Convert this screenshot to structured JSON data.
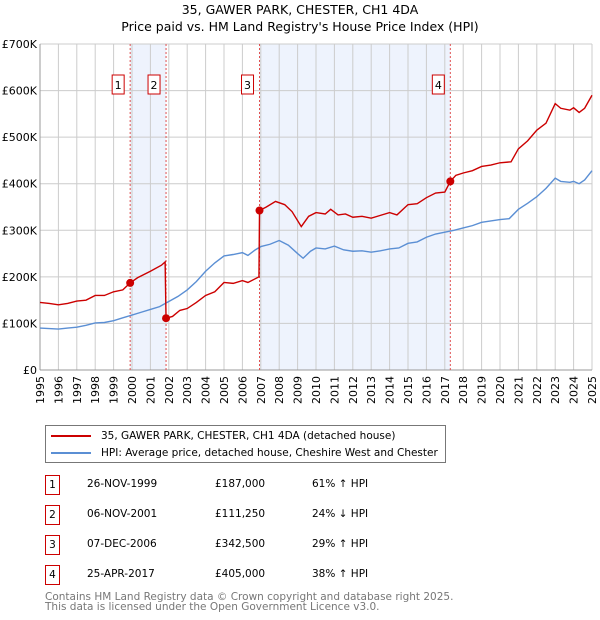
{
  "chart_data": {
    "type": "line",
    "title": "35, GAWER PARK, CHESTER, CH1 4DA",
    "subtitle": "Price paid vs. HM Land Registry's House Price Index (HPI)",
    "xlim": [
      1995,
      2025
    ],
    "ylim": [
      0,
      700000
    ],
    "x_ticks": [
      "1995",
      "1996",
      "1997",
      "1998",
      "1999",
      "2000",
      "2001",
      "2002",
      "2003",
      "2004",
      "2005",
      "2006",
      "2007",
      "2008",
      "2009",
      "2010",
      "2011",
      "2012",
      "2013",
      "2014",
      "2015",
      "2016",
      "2017",
      "2018",
      "2019",
      "2020",
      "2021",
      "2022",
      "2023",
      "2024",
      "2025"
    ],
    "y_ticks": [
      {
        "v": 0,
        "label": "£0"
      },
      {
        "v": 100000,
        "label": "£100K"
      },
      {
        "v": 200000,
        "label": "£200K"
      },
      {
        "v": 300000,
        "label": "£300K"
      },
      {
        "v": 400000,
        "label": "£400K"
      },
      {
        "v": 500000,
        "label": "£500K"
      },
      {
        "v": 600000,
        "label": "£600K"
      },
      {
        "v": 700000,
        "label": "£700K"
      }
    ],
    "grid": true,
    "series": [
      {
        "name": "35, GAWER PARK, CHESTER, CH1 4DA (detached house)",
        "color": "#cc0000",
        "points": [
          [
            1995,
            145
          ],
          [
            1995.5,
            143
          ],
          [
            1996,
            140
          ],
          [
            1996.5,
            143
          ],
          [
            1997,
            148
          ],
          [
            1997.5,
            150
          ],
          [
            1998,
            160
          ],
          [
            1998.5,
            160
          ],
          [
            1999,
            168
          ],
          [
            1999.5,
            172
          ],
          [
            1999.9,
            187
          ],
          [
            2000.3,
            198
          ],
          [
            2001,
            212
          ],
          [
            2001.6,
            225
          ],
          [
            2001.8,
            232
          ],
          [
            2001.85,
            111.25
          ],
          [
            2002.2,
            115
          ],
          [
            2002.6,
            128
          ],
          [
            2003,
            132
          ],
          [
            2003.5,
            145
          ],
          [
            2004,
            160
          ],
          [
            2004.5,
            168
          ],
          [
            2005,
            188
          ],
          [
            2005.5,
            186
          ],
          [
            2006,
            192
          ],
          [
            2006.3,
            188
          ],
          [
            2006.9,
            200
          ],
          [
            2006.93,
            342.5
          ],
          [
            2007.3,
            350
          ],
          [
            2007.8,
            362
          ],
          [
            2008.3,
            355
          ],
          [
            2008.7,
            340
          ],
          [
            2009.2,
            308
          ],
          [
            2009.6,
            330
          ],
          [
            2010,
            338
          ],
          [
            2010.5,
            335
          ],
          [
            2010.8,
            345
          ],
          [
            2011.2,
            333
          ],
          [
            2011.6,
            335
          ],
          [
            2012,
            328
          ],
          [
            2012.5,
            330
          ],
          [
            2013,
            326
          ],
          [
            2013.5,
            332
          ],
          [
            2014,
            338
          ],
          [
            2014.4,
            333
          ],
          [
            2015,
            355
          ],
          [
            2015.5,
            357
          ],
          [
            2016,
            370
          ],
          [
            2016.5,
            380
          ],
          [
            2017,
            382
          ],
          [
            2017.3,
            405
          ],
          [
            2017.6,
            418
          ],
          [
            2018,
            423
          ],
          [
            2018.5,
            428
          ],
          [
            2019,
            437
          ],
          [
            2019.5,
            440
          ],
          [
            2020,
            445
          ],
          [
            2020.6,
            447
          ],
          [
            2021,
            475
          ],
          [
            2021.5,
            492
          ],
          [
            2022,
            515
          ],
          [
            2022.5,
            530
          ],
          [
            2023,
            572
          ],
          [
            2023.3,
            562
          ],
          [
            2023.8,
            558
          ],
          [
            2024,
            563
          ],
          [
            2024.3,
            553
          ],
          [
            2024.6,
            562
          ],
          [
            2025,
            590
          ]
        ]
      },
      {
        "name": "HPI: Average price, detached house, Cheshire West and Chester",
        "color": "#5b8fd4",
        "points": [
          [
            1995,
            90
          ],
          [
            1995.5,
            89
          ],
          [
            1996,
            88
          ],
          [
            1996.5,
            90
          ],
          [
            1997,
            92
          ],
          [
            1997.5,
            96
          ],
          [
            1998,
            101
          ],
          [
            1998.5,
            102
          ],
          [
            1999,
            106
          ],
          [
            1999.5,
            112
          ],
          [
            2000,
            118
          ],
          [
            2000.5,
            124
          ],
          [
            2001,
            130
          ],
          [
            2001.5,
            136
          ],
          [
            2002,
            147
          ],
          [
            2002.5,
            158
          ],
          [
            2003,
            172
          ],
          [
            2003.5,
            190
          ],
          [
            2004,
            212
          ],
          [
            2004.5,
            230
          ],
          [
            2005,
            245
          ],
          [
            2005.5,
            248
          ],
          [
            2006,
            252
          ],
          [
            2006.3,
            246
          ],
          [
            2006.7,
            258
          ],
          [
            2007,
            265
          ],
          [
            2007.5,
            270
          ],
          [
            2008,
            278
          ],
          [
            2008.5,
            268
          ],
          [
            2009,
            250
          ],
          [
            2009.3,
            240
          ],
          [
            2009.7,
            255
          ],
          [
            2010,
            262
          ],
          [
            2010.5,
            260
          ],
          [
            2011,
            266
          ],
          [
            2011.5,
            258
          ],
          [
            2012,
            255
          ],
          [
            2012.5,
            256
          ],
          [
            2013,
            253
          ],
          [
            2013.5,
            256
          ],
          [
            2014,
            260
          ],
          [
            2014.5,
            262
          ],
          [
            2015,
            272
          ],
          [
            2015.5,
            275
          ],
          [
            2016,
            285
          ],
          [
            2016.5,
            292
          ],
          [
            2017,
            296
          ],
          [
            2017.5,
            300
          ],
          [
            2018,
            305
          ],
          [
            2018.5,
            310
          ],
          [
            2019,
            317
          ],
          [
            2019.5,
            320
          ],
          [
            2020,
            323
          ],
          [
            2020.5,
            325
          ],
          [
            2021,
            345
          ],
          [
            2021.5,
            358
          ],
          [
            2022,
            372
          ],
          [
            2022.5,
            390
          ],
          [
            2023,
            412
          ],
          [
            2023.3,
            405
          ],
          [
            2023.8,
            403
          ],
          [
            2024,
            405
          ],
          [
            2024.3,
            400
          ],
          [
            2024.6,
            408
          ],
          [
            2025,
            428
          ]
        ]
      }
    ],
    "shaded_ranges": [
      [
        1999.9,
        2001.85
      ],
      [
        2006.93,
        2017.3
      ]
    ],
    "transactions": [
      {
        "n": "1",
        "x": 1999.9,
        "price": 187000,
        "date": "26-NOV-1999",
        "price_label": "£187,000",
        "hpi": "61% ↑ HPI"
      },
      {
        "n": "2",
        "x": 2001.85,
        "price": 111250,
        "date": "06-NOV-2001",
        "price_label": "£111,250",
        "hpi": "24% ↓ HPI"
      },
      {
        "n": "3",
        "x": 2006.93,
        "price": 342500,
        "date": "07-DEC-2006",
        "price_label": "£342,500",
        "hpi": "29% ↑ HPI"
      },
      {
        "n": "4",
        "x": 2017.3,
        "price": 405000,
        "date": "25-APR-2017",
        "price_label": "£405,000",
        "hpi": "38% ↑ HPI"
      }
    ]
  },
  "footer": {
    "line1": "Contains HM Land Registry data © Crown copyright and database right 2025.",
    "line2": "This data is licensed under the Open Government Licence v3.0."
  }
}
